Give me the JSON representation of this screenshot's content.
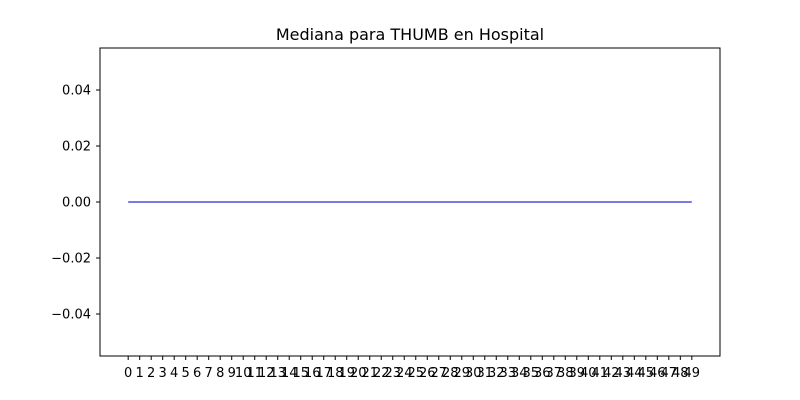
{
  "chart_data": {
    "type": "line",
    "title": "Mediana para THUMB en Hospital",
    "xlabel": "",
    "ylabel": "",
    "x": [
      0,
      1,
      2,
      3,
      4,
      5,
      6,
      7,
      8,
      9,
      10,
      11,
      12,
      13,
      14,
      15,
      16,
      17,
      18,
      19,
      20,
      21,
      22,
      23,
      24,
      25,
      26,
      27,
      28,
      29,
      30,
      31,
      32,
      33,
      34,
      35,
      36,
      37,
      38,
      39,
      40,
      41,
      42,
      43,
      44,
      45,
      46,
      47,
      48,
      49
    ],
    "x_tick_labels": [
      "0",
      "1",
      "2",
      "3",
      "4",
      "5",
      "6",
      "7",
      "8",
      "9",
      "10",
      "11",
      "12",
      "13",
      "14",
      "15",
      "16",
      "17",
      "18",
      "19",
      "20",
      "21",
      "22",
      "23",
      "24",
      "25",
      "26",
      "27",
      "28",
      "29",
      "30",
      "31",
      "32",
      "33",
      "34",
      "35",
      "36",
      "37",
      "38",
      "39",
      "40",
      "41",
      "42",
      "43",
      "44",
      "45",
      "46",
      "47",
      "48",
      "49"
    ],
    "y_ticks": [
      -0.04,
      -0.02,
      0.0,
      0.02,
      0.04
    ],
    "y_tick_labels": [
      "−0.04",
      "−0.02",
      "0.00",
      "0.02",
      "0.04"
    ],
    "xlim": [
      -2.45,
      51.45
    ],
    "ylim": [
      -0.055,
      0.055
    ],
    "grid": false,
    "series": [
      {
        "color": "#4f4fd9",
        "values": [
          0,
          0,
          0,
          0,
          0,
          0,
          0,
          0,
          0,
          0,
          0,
          0,
          0,
          0,
          0,
          0,
          0,
          0,
          0,
          0,
          0,
          0,
          0,
          0,
          0,
          0,
          0,
          0,
          0,
          0,
          0,
          0,
          0,
          0,
          0,
          0,
          0,
          0,
          0,
          0,
          0,
          0,
          0,
          0,
          0,
          0,
          0,
          0,
          0,
          0
        ]
      }
    ]
  }
}
